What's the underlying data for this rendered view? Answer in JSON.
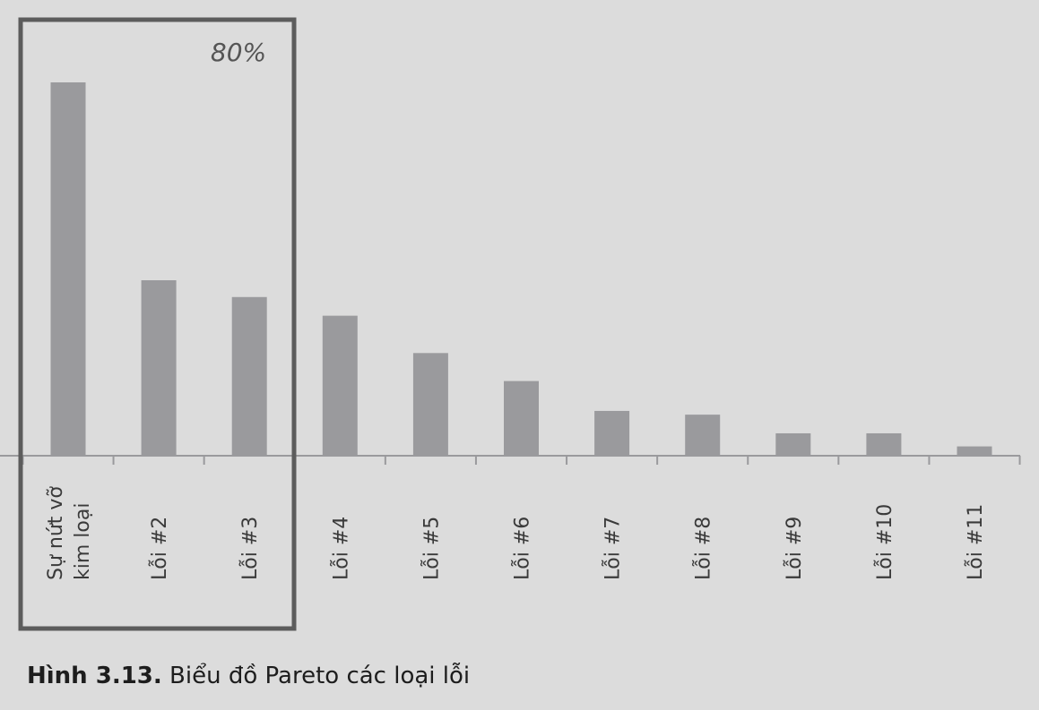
{
  "chart_data": {
    "type": "bar",
    "categories": [
      [
        "Sự nứt vỡ",
        "kim loại"
      ],
      [
        "Lỗi #2"
      ],
      [
        "Lỗi #3"
      ],
      [
        "Lỗi #4"
      ],
      [
        "Lỗi #5"
      ],
      [
        "Lỗi #6"
      ],
      [
        "Lỗi #7"
      ],
      [
        "Lỗi #8"
      ],
      [
        "Lỗi #9"
      ],
      [
        "Lỗi #10"
      ],
      [
        "Lỗi #11"
      ]
    ],
    "values": [
      100,
      47,
      42.5,
      37.5,
      27.5,
      20,
      12,
      11,
      6,
      6,
      2.5
    ],
    "ylim": [
      0,
      100
    ],
    "grid": false,
    "annotation": {
      "text": "80%",
      "covers_categories": 3
    },
    "colors": {
      "bar": "#9a9a9d",
      "box": "#5c5c5c",
      "background": "#dcdcdc"
    }
  },
  "caption": {
    "lead": "Hình 3.13.",
    "text": " Biểu đồ Pareto các loại lỗi"
  }
}
